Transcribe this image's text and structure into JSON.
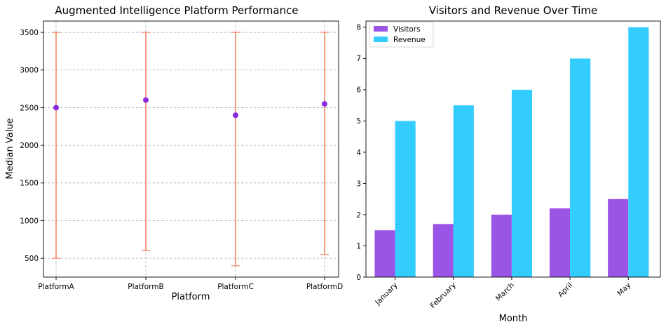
{
  "chart_data": [
    {
      "type": "scatter",
      "title": "Augmented Intelligence Platform Performance",
      "xlabel": "Platform",
      "ylabel": "Median Value",
      "categories": [
        "PlatformA",
        "PlatformB",
        "PlatformC",
        "PlatformD"
      ],
      "median": [
        2500,
        2600,
        2400,
        2550
      ],
      "min": [
        500,
        600,
        400,
        550
      ],
      "max": [
        3500,
        3500,
        3500,
        3500
      ],
      "ylim": [
        250,
        3650
      ],
      "yticks": [
        500,
        1000,
        1500,
        2000,
        2500,
        3000,
        3500
      ],
      "grid": true,
      "colors": {
        "point": "#8a2be2",
        "errorbar": "#f4845f"
      }
    },
    {
      "type": "bar",
      "title": "Visitors and Revenue Over Time",
      "xlabel": "Month",
      "ylabel": "",
      "categories": [
        "January",
        "February",
        "March",
        "April",
        "May"
      ],
      "series": [
        {
          "name": "Visitors",
          "values": [
            1.5,
            1.7,
            2.0,
            2.2,
            2.5
          ],
          "color": "#9b55e6"
        },
        {
          "name": "Revenue",
          "values": [
            5.0,
            5.5,
            6.0,
            7.0,
            8.0
          ],
          "color": "#33ccff"
        }
      ],
      "ylim": [
        0,
        8.2
      ],
      "yticks": [
        0,
        1,
        2,
        3,
        4,
        5,
        6,
        7,
        8
      ],
      "grid": false,
      "legend": "top-left"
    }
  ]
}
